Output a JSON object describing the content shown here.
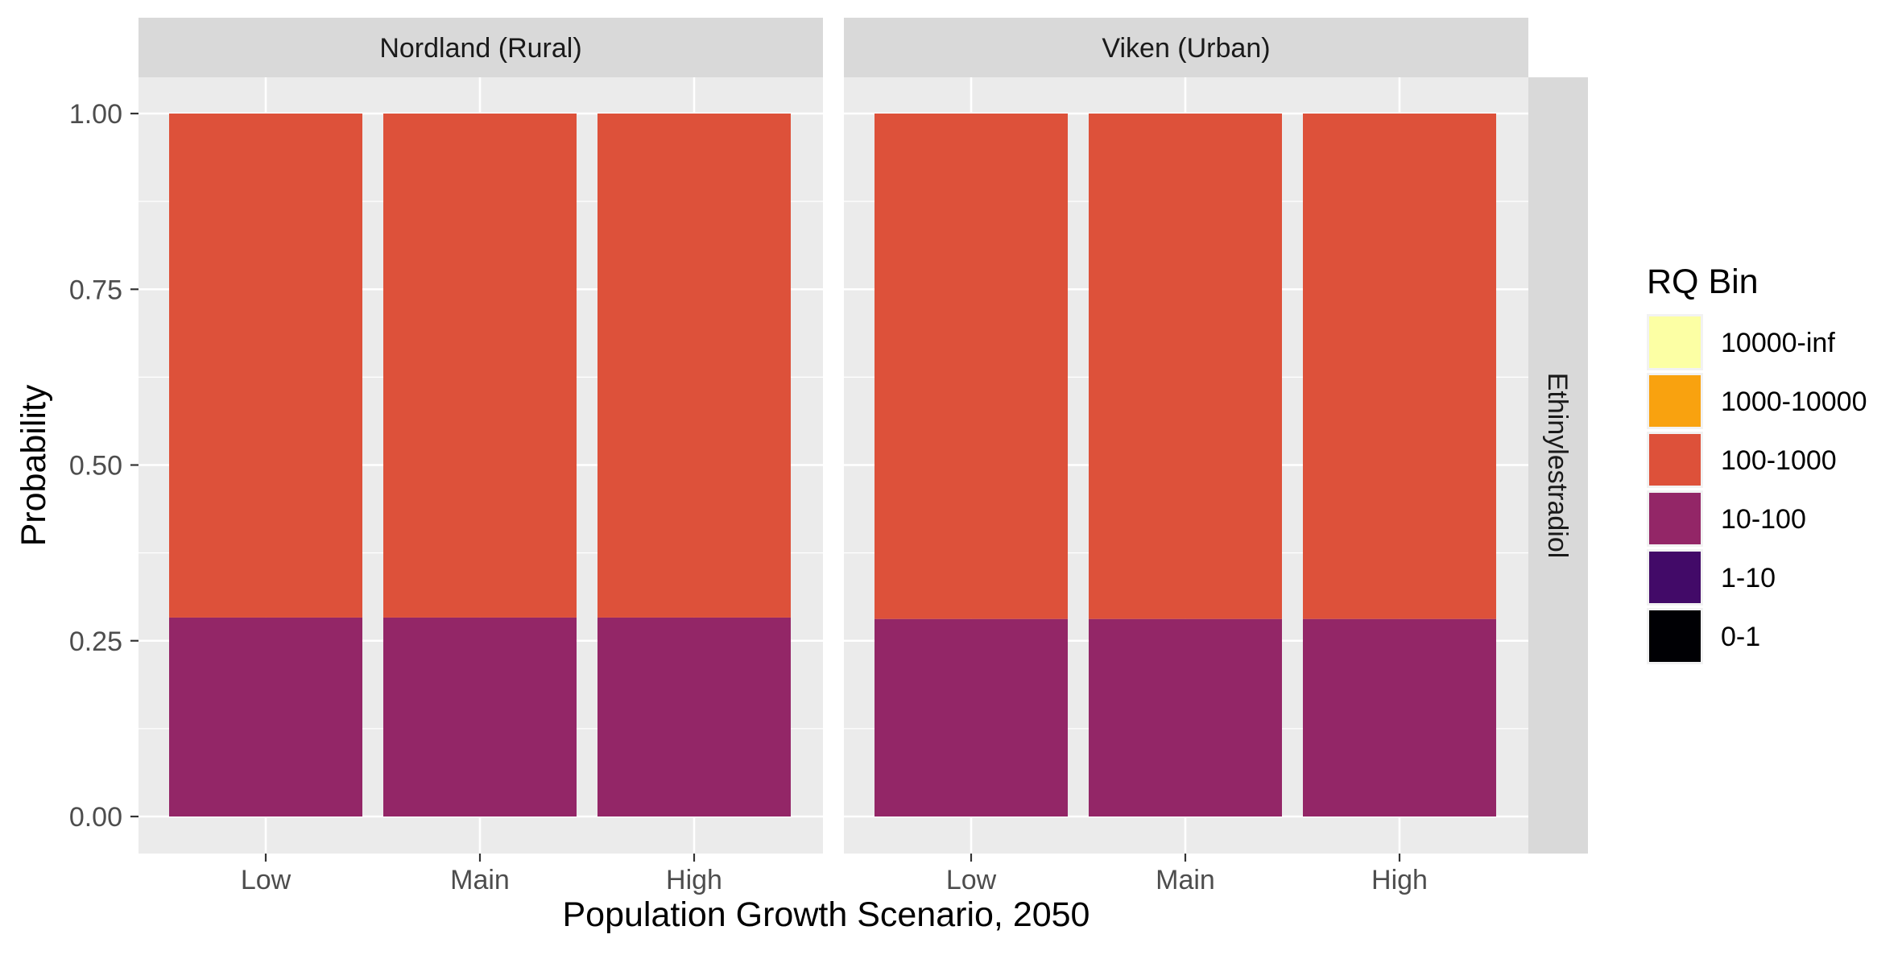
{
  "chart_data": {
    "type": "bar",
    "stacked": true,
    "xlabel": "Population Growth Scenario, 2050",
    "ylabel": "Probability",
    "ylim": [
      0,
      1.05
    ],
    "yticks": [
      "0.00",
      "0.25",
      "0.50",
      "0.75",
      "1.00"
    ],
    "ytick_values": [
      0,
      0.25,
      0.5,
      0.75,
      1.0
    ],
    "categories": [
      "Low",
      "Main",
      "High"
    ],
    "row_facet_label": "Ethinylestradiol",
    "grid": true,
    "legend_position": "right",
    "legend": {
      "title": "RQ Bin",
      "entries": [
        {
          "label": "10000-inf",
          "color": "#FCFFA4"
        },
        {
          "label": "1000-10000",
          "color": "#F9A20F"
        },
        {
          "label": "100-1000",
          "color": "#DD513A"
        },
        {
          "label": "10-100",
          "color": "#932667"
        },
        {
          "label": "1-10",
          "color": "#420A68"
        },
        {
          "label": "0-1",
          "color": "#000004"
        }
      ]
    },
    "panels": [
      {
        "facet_label": "Nordland (Rural)",
        "series": [
          {
            "name": "10-100",
            "color": "#932667",
            "values": [
              0.283,
              0.283,
              0.283
            ]
          },
          {
            "name": "100-1000",
            "color": "#DD513A",
            "values": [
              0.717,
              0.717,
              0.717
            ]
          }
        ]
      },
      {
        "facet_label": "Viken (Urban)",
        "series": [
          {
            "name": "10-100",
            "color": "#932667",
            "values": [
              0.281,
              0.281,
              0.281
            ]
          },
          {
            "name": "100-1000",
            "color": "#DD513A",
            "values": [
              0.719,
              0.719,
              0.719
            ]
          }
        ]
      }
    ]
  }
}
